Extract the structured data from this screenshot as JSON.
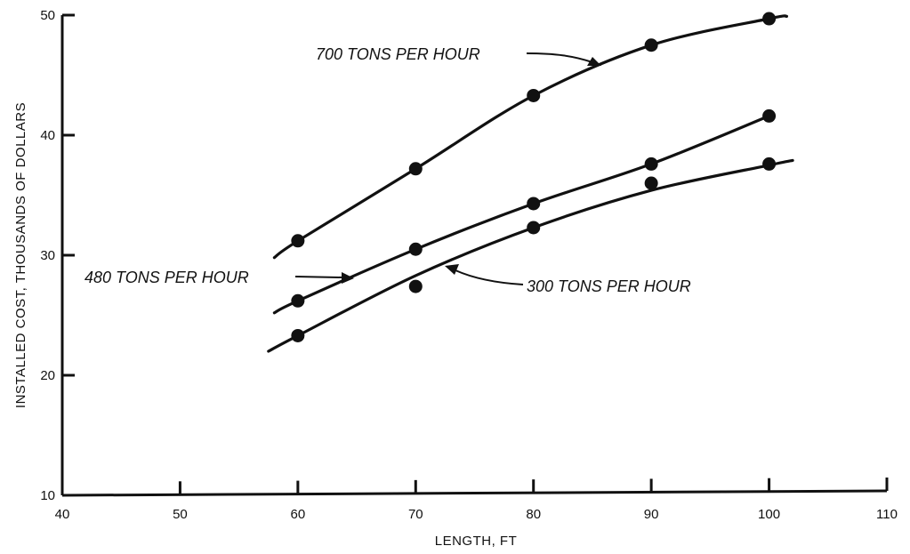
{
  "chart_data": {
    "type": "line",
    "title": "",
    "xlabel": "LENGTH, FT",
    "ylabel": "INSTALLED COST, THOUSANDS OF DOLLARS",
    "xlim": [
      40,
      110
    ],
    "ylim": [
      10,
      50
    ],
    "x_ticks": [
      40,
      50,
      60,
      70,
      80,
      90,
      100,
      110
    ],
    "y_ticks": [
      10,
      20,
      30,
      40,
      50
    ],
    "grid": false,
    "legend": "none",
    "series": [
      {
        "name": "700 TONS PER HOUR",
        "points": [
          [
            60,
            31.2
          ],
          [
            70,
            37.2
          ],
          [
            80,
            43.3
          ],
          [
            90,
            47.5
          ],
          [
            100,
            49.7
          ]
        ],
        "curve": [
          [
            58,
            29.8
          ],
          [
            60,
            31.2
          ],
          [
            70,
            37.2
          ],
          [
            80,
            43.3
          ],
          [
            90,
            47.5
          ],
          [
            100,
            49.7
          ],
          [
            101.5,
            49.9
          ]
        ]
      },
      {
        "name": "480 TONS PER HOUR",
        "points": [
          [
            60,
            26.2
          ],
          [
            70,
            30.5
          ],
          [
            80,
            34.3
          ],
          [
            90,
            37.6
          ],
          [
            100,
            41.6
          ]
        ],
        "curve": [
          [
            58,
            25.2
          ],
          [
            60,
            26.2
          ],
          [
            70,
            30.5
          ],
          [
            80,
            34.3
          ],
          [
            90,
            37.6
          ],
          [
            100,
            41.6
          ]
        ]
      },
      {
        "name": "300 TONS PER HOUR",
        "points": [
          [
            60,
            23.3
          ],
          [
            70,
            27.4
          ],
          [
            80,
            32.3
          ],
          [
            90,
            36.0
          ],
          [
            100,
            37.6
          ]
        ],
        "curve": [
          [
            57.5,
            22.0
          ],
          [
            60,
            23.3
          ],
          [
            70,
            28.3
          ],
          [
            80,
            32.3
          ],
          [
            90,
            35.4
          ],
          [
            100,
            37.5
          ],
          [
            102,
            37.9
          ]
        ]
      }
    ]
  }
}
